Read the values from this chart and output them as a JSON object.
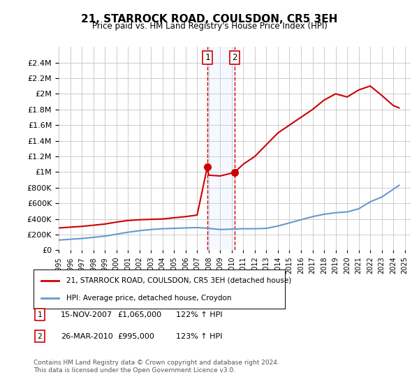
{
  "title": "21, STARROCK ROAD, COULSDON, CR5 3EH",
  "subtitle": "Price paid vs. HM Land Registry's House Price Index (HPI)",
  "red_label": "21, STARROCK ROAD, COULSDON, CR5 3EH (detached house)",
  "blue_label": "HPI: Average price, detached house, Croydon",
  "footnote": "Contains HM Land Registry data © Crown copyright and database right 2024.\nThis data is licensed under the Open Government Licence v3.0.",
  "transactions": [
    {
      "num": "1",
      "date": "15-NOV-2007",
      "price": "£1,065,000",
      "hpi": "122% ↑ HPI"
    },
    {
      "num": "2",
      "date": "26-MAR-2010",
      "price": "£995,000",
      "hpi": "123% ↑ HPI"
    }
  ],
  "transaction_dates": [
    2007.88,
    2010.23
  ],
  "transaction_prices": [
    1065000,
    995000
  ],
  "ylim": [
    0,
    2600000
  ],
  "yticks": [
    0,
    200000,
    400000,
    600000,
    800000,
    1000000,
    1200000,
    1400000,
    1600000,
    1800000,
    2000000,
    2200000,
    2400000
  ],
  "xlim": [
    1995,
    2025.5
  ],
  "red_color": "#cc0000",
  "blue_color": "#6699cc",
  "shade_color": "#cce0ff",
  "vline_color": "#cc0000",
  "background_color": "#ffffff",
  "grid_color": "#cccccc",
  "red_line": {
    "x": [
      1995,
      1996,
      1997,
      1998,
      1999,
      2000,
      2001,
      2002,
      2003,
      2004,
      2005,
      2006,
      2007,
      2007.88,
      2008,
      2009,
      2010.23,
      2011,
      2012,
      2013,
      2014,
      2015,
      2016,
      2017,
      2018,
      2019,
      2020,
      2021,
      2022,
      2023,
      2024,
      2024.5
    ],
    "y": [
      285000,
      295000,
      305000,
      320000,
      335000,
      360000,
      380000,
      390000,
      395000,
      400000,
      415000,
      430000,
      450000,
      1065000,
      960000,
      950000,
      995000,
      1100000,
      1200000,
      1350000,
      1500000,
      1600000,
      1700000,
      1800000,
      1920000,
      2000000,
      1960000,
      2050000,
      2100000,
      1980000,
      1850000,
      1820000
    ]
  },
  "blue_line": {
    "x": [
      1995,
      1996,
      1997,
      1998,
      1999,
      2000,
      2001,
      2002,
      2003,
      2004,
      2005,
      2006,
      2007,
      2008,
      2009,
      2010,
      2011,
      2012,
      2013,
      2014,
      2015,
      2016,
      2017,
      2018,
      2019,
      2020,
      2021,
      2022,
      2023,
      2024,
      2024.5
    ],
    "y": [
      130000,
      140000,
      150000,
      165000,
      180000,
      205000,
      230000,
      250000,
      265000,
      275000,
      280000,
      285000,
      290000,
      280000,
      265000,
      270000,
      275000,
      275000,
      280000,
      310000,
      350000,
      390000,
      430000,
      460000,
      480000,
      490000,
      530000,
      620000,
      680000,
      780000,
      830000
    ]
  }
}
